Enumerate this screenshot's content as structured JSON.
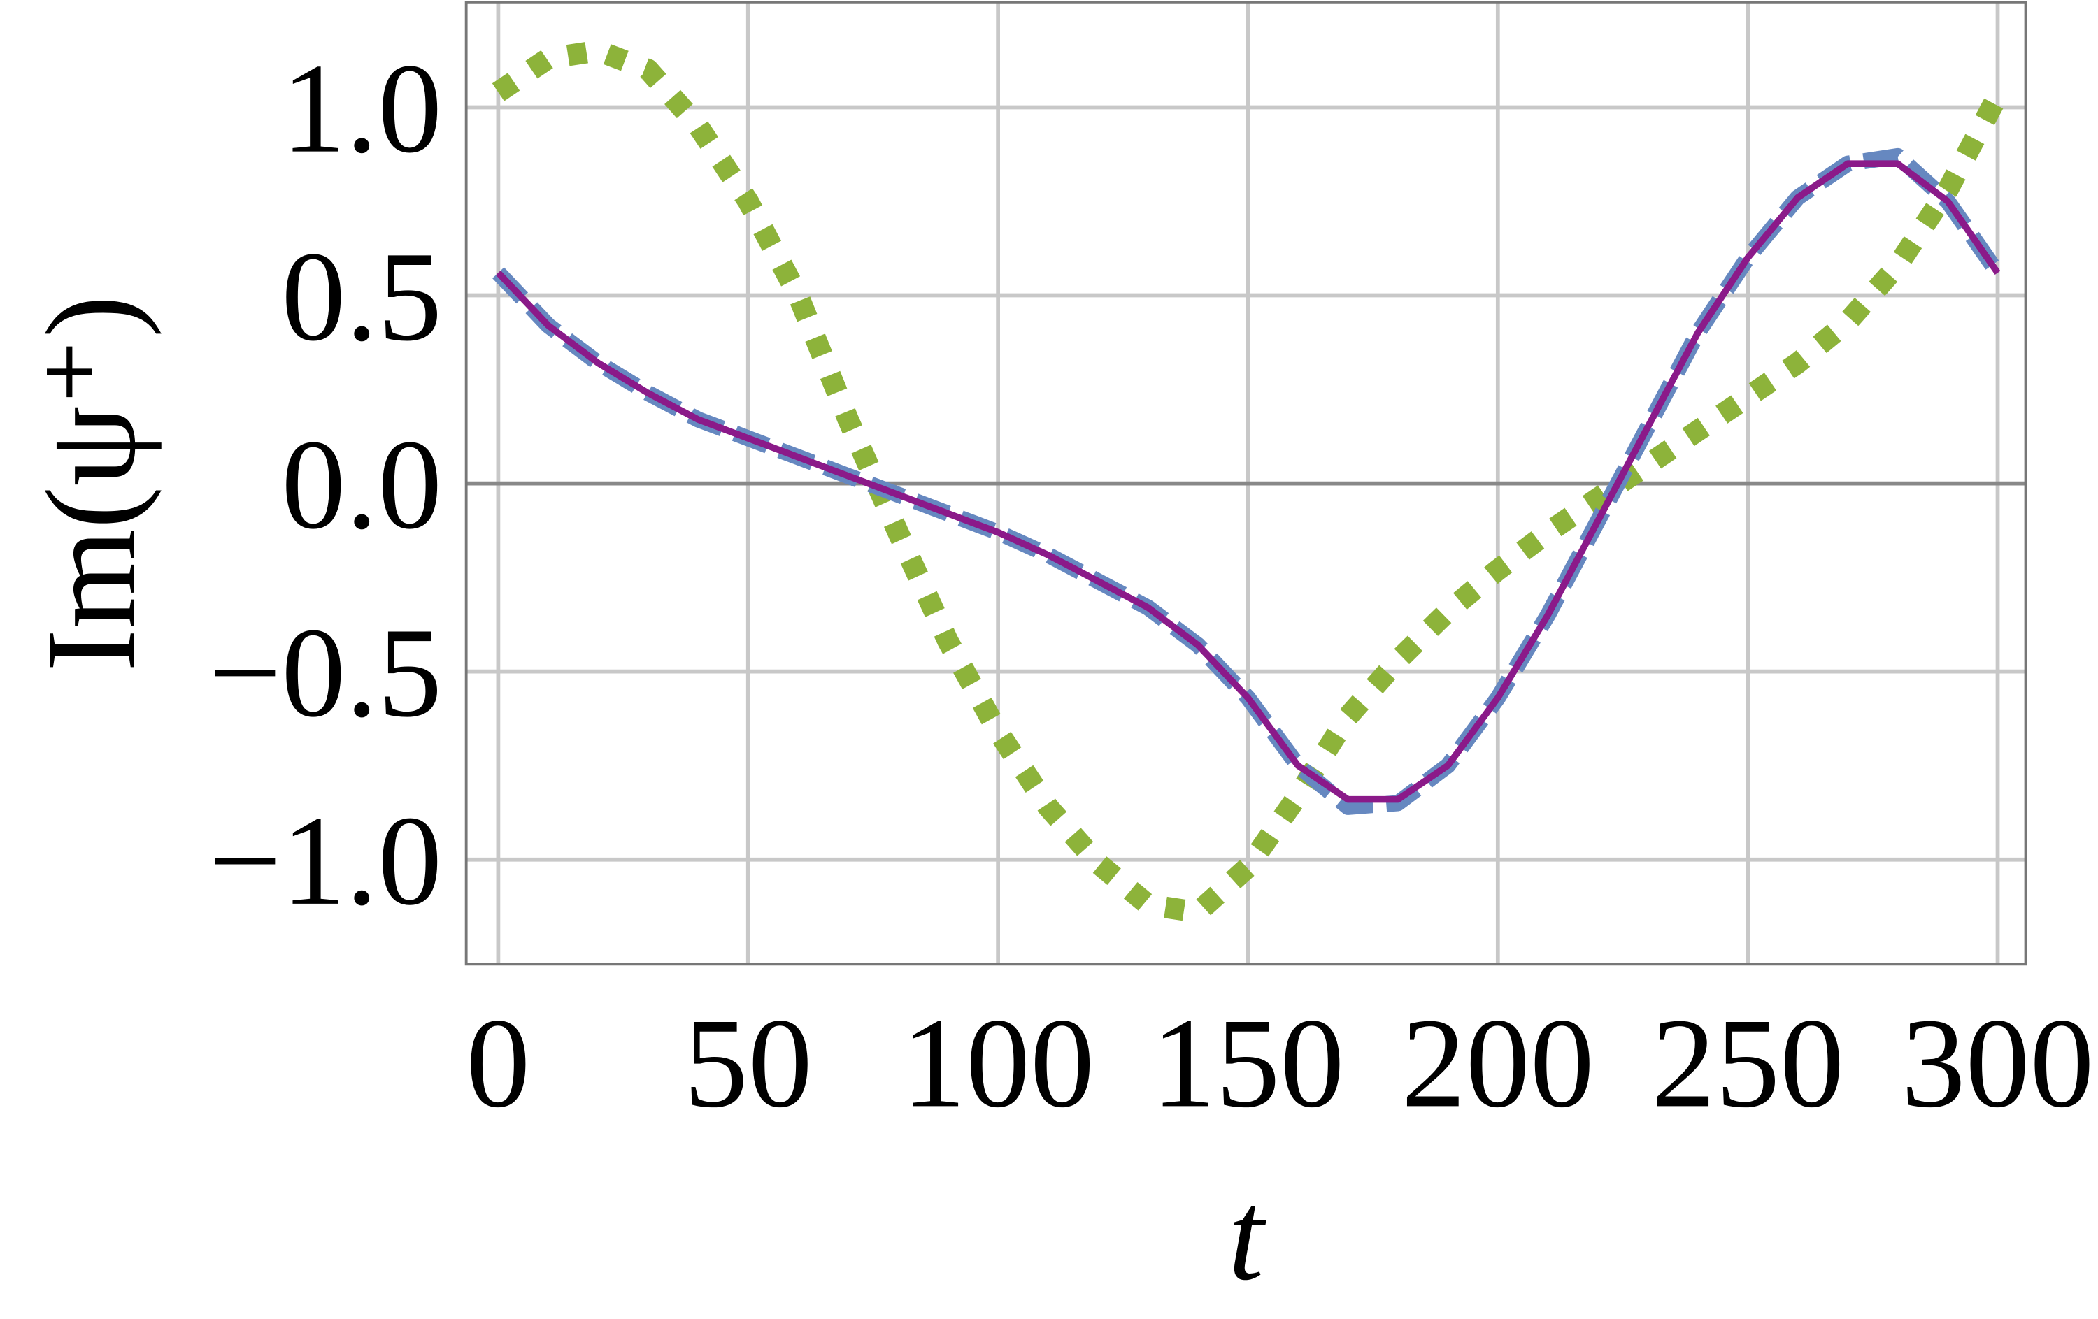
{
  "chart_data": {
    "type": "line",
    "xlabel": "t",
    "ylabel": "Im(ψ⁺)",
    "x": [
      0,
      10,
      20,
      30,
      40,
      50,
      60,
      70,
      80,
      90,
      100,
      110,
      120,
      130,
      140,
      150,
      160,
      170,
      180,
      190,
      200,
      210,
      220,
      230,
      240,
      250,
      260,
      270,
      280,
      290,
      300
    ],
    "series": [
      {
        "color": "#8db33a",
        "style": "dotted",
        "values": [
          1.04,
          1.13,
          1.15,
          1.1,
          0.95,
          0.75,
          0.5,
          0.17,
          -0.13,
          -0.42,
          -0.66,
          -0.86,
          -1.01,
          -1.12,
          -1.14,
          -1.02,
          -0.83,
          -0.62,
          -0.47,
          -0.34,
          -0.23,
          -0.13,
          -0.04,
          0.05,
          0.14,
          0.23,
          0.32,
          0.43,
          0.58,
          0.78,
          1.03
        ]
      },
      {
        "color": "#6688c0",
        "style": "dashed",
        "values": [
          0.56,
          0.42,
          0.32,
          0.24,
          0.17,
          0.12,
          0.07,
          0.02,
          -0.03,
          -0.08,
          -0.13,
          -0.19,
          -0.26,
          -0.33,
          -0.43,
          -0.57,
          -0.75,
          -0.86,
          -0.85,
          -0.75,
          -0.57,
          -0.35,
          -0.1,
          0.15,
          0.4,
          0.6,
          0.76,
          0.85,
          0.87,
          0.75,
          0.56
        ]
      },
      {
        "color": "#8b1a89",
        "style": "solid",
        "values": [
          0.56,
          0.42,
          0.32,
          0.24,
          0.17,
          0.12,
          0.07,
          0.02,
          -0.03,
          -0.08,
          -0.13,
          -0.19,
          -0.26,
          -0.33,
          -0.43,
          -0.57,
          -0.75,
          -0.84,
          -0.84,
          -0.75,
          -0.57,
          -0.35,
          -0.1,
          0.15,
          0.4,
          0.6,
          0.76,
          0.85,
          0.85,
          0.75,
          0.56
        ]
      }
    ],
    "xlim": [
      -6.4,
      305.6
    ],
    "ylim": [
      -1.278,
      1.278
    ],
    "xticks": [
      0,
      50,
      100,
      150,
      200,
      250,
      300
    ],
    "yticks": [
      {
        "value": -1,
        "label": "−1.0"
      },
      {
        "value": -0.5,
        "label": "−0.5"
      },
      {
        "value": 0,
        "label": "0.0"
      },
      {
        "value": 0.5,
        "label": "0.5"
      },
      {
        "value": 1,
        "label": "1.0"
      }
    ],
    "grid": true
  }
}
